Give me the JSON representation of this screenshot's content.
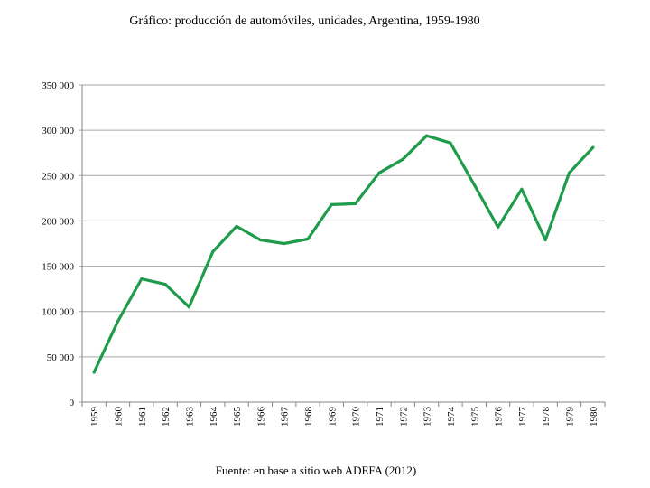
{
  "chart_data": {
    "type": "line",
    "title": "Gráfico: producción de automóviles, unidades, Argentina, 1959-1980",
    "xlabel": "",
    "ylabel": "",
    "ylim": [
      0,
      350000
    ],
    "yticks": [
      0,
      50000,
      100000,
      150000,
      200000,
      250000,
      300000,
      350000
    ],
    "ytick_labels": [
      "0",
      "50 000",
      "100 000",
      "150 000",
      "200 000",
      "250 000",
      "300 000",
      "350 000"
    ],
    "grid": true,
    "categories": [
      "1959",
      "1960",
      "1961",
      "1962",
      "1963",
      "1964",
      "1965",
      "1966",
      "1967",
      "1968",
      "1969",
      "1970",
      "1971",
      "1972",
      "1973",
      "1974",
      "1975",
      "1976",
      "1977",
      "1978",
      "1979",
      "1980"
    ],
    "series": [
      {
        "name": "producción de automóviles",
        "color": "#1e9b4b",
        "values": [
          33000,
          89000,
          136000,
          130000,
          105000,
          166000,
          194000,
          179000,
          175000,
          180000,
          218000,
          219000,
          253000,
          268000,
          294000,
          286000,
          240000,
          193000,
          235000,
          179000,
          253000,
          281000
        ]
      }
    ],
    "source": "Fuente: en base a sitio web ADEFA (2012)"
  }
}
